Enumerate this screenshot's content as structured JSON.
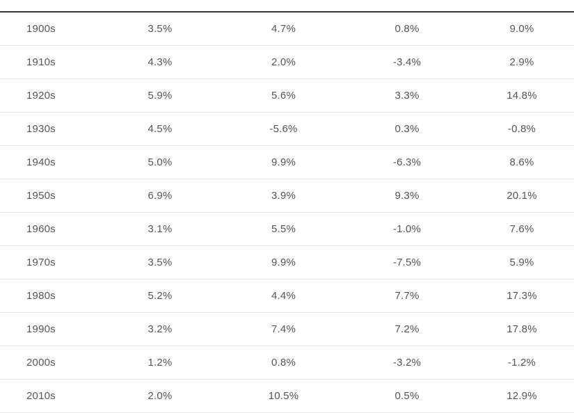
{
  "table": {
    "rows": [
      {
        "decade": "1900s",
        "c1": "3.5%",
        "c2": "4.7%",
        "c3": "0.8%",
        "c4": "9.0%"
      },
      {
        "decade": "1910s",
        "c1": "4.3%",
        "c2": "2.0%",
        "c3": "-3.4%",
        "c4": "2.9%"
      },
      {
        "decade": "1920s",
        "c1": "5.9%",
        "c2": "5.6%",
        "c3": "3.3%",
        "c4": "14.8%"
      },
      {
        "decade": "1930s",
        "c1": "4.5%",
        "c2": "-5.6%",
        "c3": "0.3%",
        "c4": "-0.8%"
      },
      {
        "decade": "1940s",
        "c1": "5.0%",
        "c2": "9.9%",
        "c3": "-6.3%",
        "c4": "8.6%"
      },
      {
        "decade": "1950s",
        "c1": "6.9%",
        "c2": "3.9%",
        "c3": "9.3%",
        "c4": "20.1%"
      },
      {
        "decade": "1960s",
        "c1": "3.1%",
        "c2": "5.5%",
        "c3": "-1.0%",
        "c4": "7.6%"
      },
      {
        "decade": "1970s",
        "c1": "3.5%",
        "c2": "9.9%",
        "c3": "-7.5%",
        "c4": "5.9%"
      },
      {
        "decade": "1980s",
        "c1": "5.2%",
        "c2": "4.4%",
        "c3": "7.7%",
        "c4": "17.3%"
      },
      {
        "decade": "1990s",
        "c1": "3.2%",
        "c2": "7.4%",
        "c3": "7.2%",
        "c4": "17.8%"
      },
      {
        "decade": "2000s",
        "c1": "1.2%",
        "c2": "0.8%",
        "c3": "-3.2%",
        "c4": "-1.2%"
      },
      {
        "decade": "2010s",
        "c1": "2.0%",
        "c2": "10.5%",
        "c3": "0.5%",
        "c4": "12.9%"
      }
    ]
  }
}
